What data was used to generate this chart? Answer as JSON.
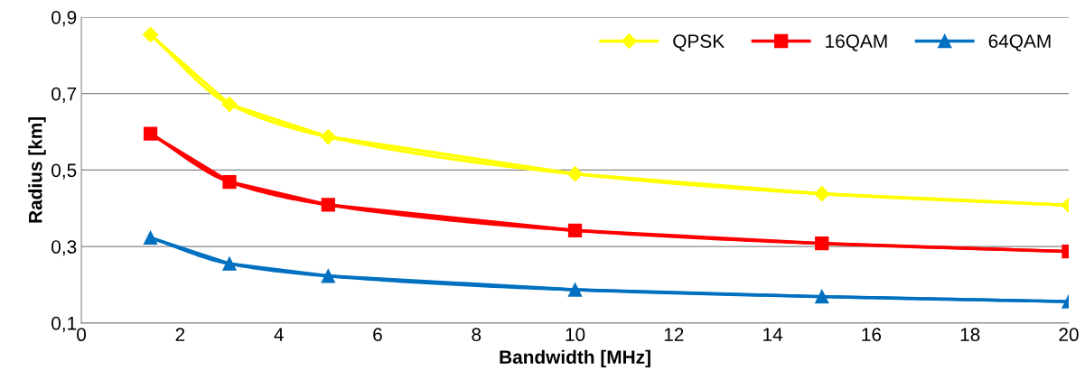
{
  "chart_data": {
    "type": "line",
    "xlabel": "Bandwidth [MHz]",
    "ylabel": "Radius [km]",
    "x": [
      1.4,
      3,
      5,
      10,
      15,
      20
    ],
    "series": [
      {
        "name": "QPSK",
        "color": "#ffff00",
        "marker": "diamond",
        "values": [
          0.854,
          0.672,
          0.587,
          0.49,
          0.438,
          0.408
        ]
      },
      {
        "name": "16QAM",
        "color": "#ff0000",
        "marker": "square",
        "values": [
          0.595,
          0.469,
          0.409,
          0.342,
          0.308,
          0.287
        ]
      },
      {
        "name": "64QAM",
        "color": "#0070c0",
        "marker": "triangle",
        "values": [
          0.323,
          0.255,
          0.223,
          0.187,
          0.169,
          0.156
        ]
      }
    ],
    "xlim": [
      0,
      20
    ],
    "xticks": [
      0,
      2,
      4,
      6,
      8,
      10,
      12,
      14,
      16,
      18,
      20
    ],
    "ylim": [
      0.1,
      0.9
    ],
    "yticks": [
      {
        "value": 0.1,
        "label": "0,1"
      },
      {
        "value": 0.3,
        "label": "0,3"
      },
      {
        "value": 0.5,
        "label": "0,5"
      },
      {
        "value": 0.7,
        "label": "0,7"
      },
      {
        "value": 0.9,
        "label": "0,9"
      }
    ],
    "grid": "y",
    "legend": "top right",
    "line_style": "solid"
  }
}
